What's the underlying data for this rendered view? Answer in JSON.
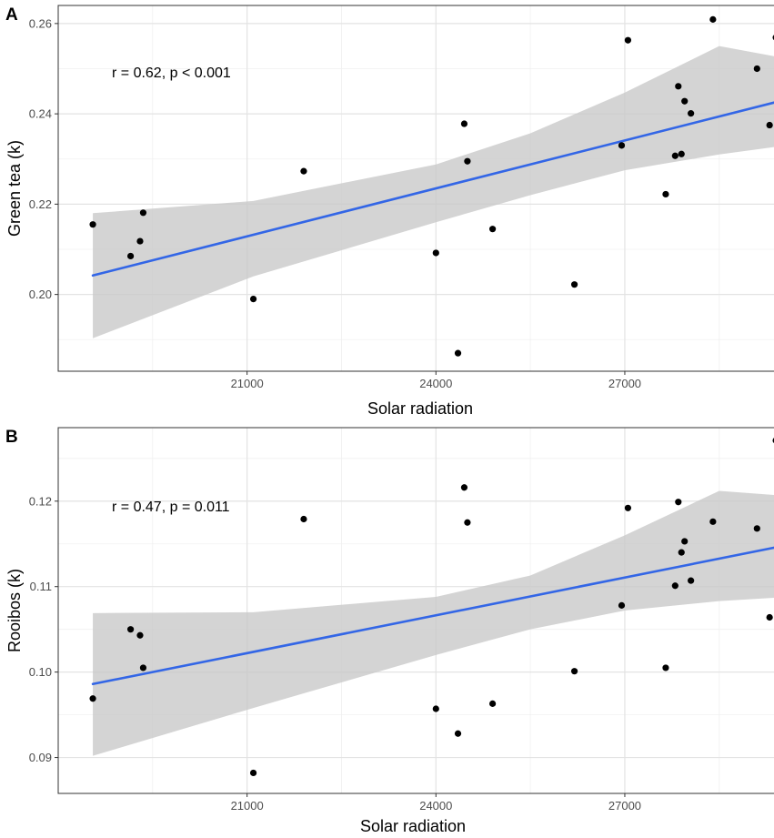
{
  "chart_data": [
    {
      "type": "scatter",
      "panel_label": "A",
      "xlabel": "Solar radiation",
      "ylabel": "Green tea (k)",
      "xlim": [
        18000,
        29500
      ],
      "ylim": [
        0.183,
        0.264
      ],
      "xticks": [
        21000,
        24000,
        27000
      ],
      "xtick_labels": [
        "21000",
        "24000",
        "27000"
      ],
      "yticks": [
        0.2,
        0.22,
        0.24,
        0.26
      ],
      "ytick_labels": [
        "0.20",
        "0.22",
        "0.24",
        "0.26"
      ],
      "annotation": "r = 0.62, p < 0.001",
      "grid": true,
      "points": [
        {
          "x": 18550,
          "y": 0.2155
        },
        {
          "x": 19150,
          "y": 0.2085
        },
        {
          "x": 19300,
          "y": 0.2118
        },
        {
          "x": 19350,
          "y": 0.2181
        },
        {
          "x": 21100,
          "y": 0.199
        },
        {
          "x": 21900,
          "y": 0.2273
        },
        {
          "x": 24000,
          "y": 0.2092
        },
        {
          "x": 24350,
          "y": 0.187
        },
        {
          "x": 24450,
          "y": 0.2378
        },
        {
          "x": 24500,
          "y": 0.2295
        },
        {
          "x": 24900,
          "y": 0.2145
        },
        {
          "x": 26200,
          "y": 0.2022
        },
        {
          "x": 26950,
          "y": 0.233
        },
        {
          "x": 27050,
          "y": 0.2563
        },
        {
          "x": 27650,
          "y": 0.2222
        },
        {
          "x": 27800,
          "y": 0.2307
        },
        {
          "x": 27850,
          "y": 0.2461
        },
        {
          "x": 27900,
          "y": 0.2311
        },
        {
          "x": 27950,
          "y": 0.2428
        },
        {
          "x": 28050,
          "y": 0.2401
        },
        {
          "x": 28400,
          "y": 0.2609
        },
        {
          "x": 29100,
          "y": 0.25
        },
        {
          "x": 29300,
          "y": 0.2375
        },
        {
          "x": 29400,
          "y": 0.2569
        }
      ],
      "fit": {
        "x": [
          18550,
          29400
        ],
        "y": [
          0.2042,
          0.2426
        ]
      },
      "ci_band": {
        "x": [
          18550,
          21100,
          24000,
          25500,
          27000,
          28500,
          29400
        ],
        "lower": [
          0.1903,
          0.204,
          0.216,
          0.222,
          0.2275,
          0.231,
          0.2327
        ],
        "upper": [
          0.218,
          0.2207,
          0.2288,
          0.2357,
          0.2447,
          0.255,
          0.2527
        ]
      }
    },
    {
      "type": "scatter",
      "panel_label": "B",
      "xlabel": "Solar radiation",
      "ylabel": "Rooibos (k)",
      "xlim": [
        18000,
        29500
      ],
      "ylim": [
        0.0858,
        0.1286
      ],
      "xticks": [
        21000,
        24000,
        27000
      ],
      "xtick_labels": [
        "21000",
        "24000",
        "27000"
      ],
      "yticks": [
        0.09,
        0.1,
        0.11,
        0.12
      ],
      "ytick_labels": [
        "0.09",
        "0.10",
        "0.11",
        "0.12"
      ],
      "annotation": "r = 0.47, p = 0.011",
      "grid": true,
      "points": [
        {
          "x": 18550,
          "y": 0.0969
        },
        {
          "x": 19150,
          "y": 0.105
        },
        {
          "x": 19300,
          "y": 0.1043
        },
        {
          "x": 19350,
          "y": 0.1005
        },
        {
          "x": 21100,
          "y": 0.0882
        },
        {
          "x": 21900,
          "y": 0.1179
        },
        {
          "x": 24000,
          "y": 0.0957
        },
        {
          "x": 24350,
          "y": 0.0928
        },
        {
          "x": 24450,
          "y": 0.1216
        },
        {
          "x": 24500,
          "y": 0.1175
        },
        {
          "x": 24900,
          "y": 0.0963
        },
        {
          "x": 26200,
          "y": 0.1001
        },
        {
          "x": 26950,
          "y": 0.1078
        },
        {
          "x": 27050,
          "y": 0.1192
        },
        {
          "x": 27650,
          "y": 0.1005
        },
        {
          "x": 27800,
          "y": 0.1101
        },
        {
          "x": 27850,
          "y": 0.1199
        },
        {
          "x": 27900,
          "y": 0.114
        },
        {
          "x": 27950,
          "y": 0.1153
        },
        {
          "x": 28050,
          "y": 0.1107
        },
        {
          "x": 28400,
          "y": 0.1176
        },
        {
          "x": 29100,
          "y": 0.1168
        },
        {
          "x": 29300,
          "y": 0.1064
        },
        {
          "x": 29400,
          "y": 0.1271
        }
      ],
      "fit": {
        "x": [
          18550,
          29400
        ],
        "y": [
          0.0986,
          0.1146
        ]
      },
      "ci_band": {
        "x": [
          18550,
          21100,
          24000,
          25500,
          27000,
          28500,
          29400
        ],
        "lower": [
          0.0902,
          0.0958,
          0.102,
          0.105,
          0.1072,
          0.1083,
          0.1087
        ],
        "upper": [
          0.1069,
          0.107,
          0.1088,
          0.1113,
          0.116,
          0.1212,
          0.1207
        ]
      }
    }
  ]
}
